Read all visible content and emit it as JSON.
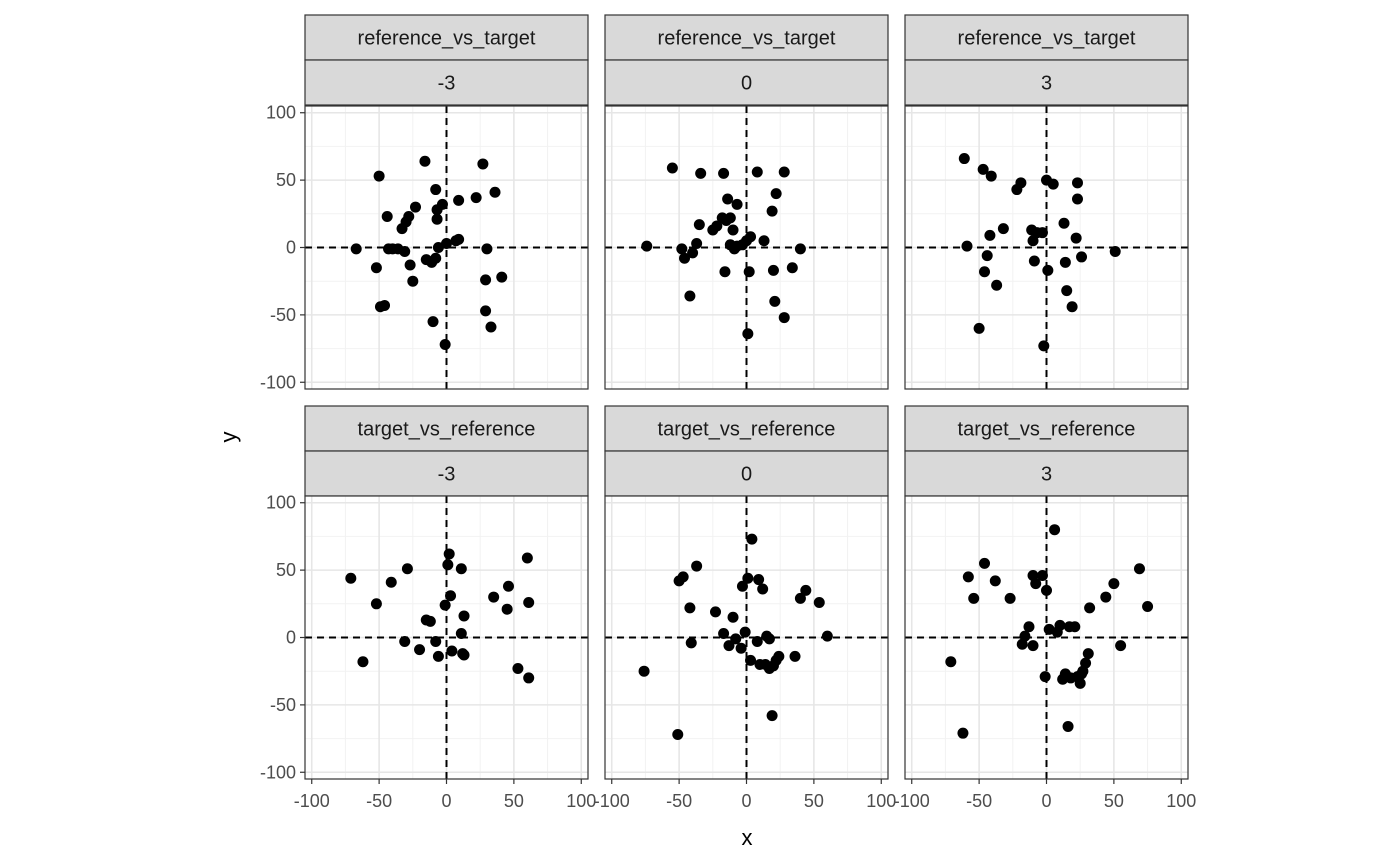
{
  "chart_data": {
    "type": "scatter",
    "xlabel": "x",
    "ylabel": "y",
    "xlim": [
      -105,
      105
    ],
    "ylim": [
      -105,
      105
    ],
    "x_ticks": [
      -100,
      -50,
      0,
      50,
      100
    ],
    "y_ticks": [
      -100,
      -50,
      0,
      50,
      100
    ],
    "x_tick_labels": [
      "-100",
      "-50",
      "0",
      "50",
      "100"
    ],
    "y_tick_labels": [
      "-100",
      "-50",
      "0",
      "50",
      "100"
    ],
    "reference_lines": {
      "x": 0,
      "y": 0,
      "style": "dashed"
    },
    "grid": true,
    "facet_layout": {
      "rows": 2,
      "cols": 3
    },
    "point_color": "#000000",
    "panels": [
      {
        "strip_top": "reference_vs_target",
        "strip_bottom": "-3",
        "points": [
          [
            -67,
            -1
          ],
          [
            -52,
            -15
          ],
          [
            -50,
            53
          ],
          [
            -49,
            -44
          ],
          [
            -46,
            -43
          ],
          [
            -44,
            23
          ],
          [
            -43,
            -1
          ],
          [
            -40,
            -1
          ],
          [
            -36,
            -1
          ],
          [
            -33,
            14
          ],
          [
            -31,
            -3
          ],
          [
            -30,
            19
          ],
          [
            -28,
            23
          ],
          [
            -27,
            -13
          ],
          [
            -25,
            -25
          ],
          [
            -23,
            30
          ],
          [
            -16,
            64
          ],
          [
            -15,
            -9
          ],
          [
            -11,
            -11
          ],
          [
            -10,
            -55
          ],
          [
            -8,
            43
          ],
          [
            -8,
            -8
          ],
          [
            -7,
            21
          ],
          [
            -7,
            28
          ],
          [
            -6,
            0
          ],
          [
            -3,
            32
          ],
          [
            -1,
            -72
          ],
          [
            0,
            3
          ],
          [
            7,
            5
          ],
          [
            9,
            6
          ],
          [
            9,
            35
          ],
          [
            22,
            37
          ],
          [
            27,
            62
          ],
          [
            29,
            -47
          ],
          [
            29,
            -24
          ],
          [
            30,
            -1
          ],
          [
            33,
            -59
          ],
          [
            36,
            41
          ],
          [
            41,
            -22
          ]
        ]
      },
      {
        "strip_top": "reference_vs_target",
        "strip_bottom": "0",
        "points": [
          [
            -74,
            1
          ],
          [
            -55,
            59
          ],
          [
            -48,
            -1
          ],
          [
            -46,
            -8
          ],
          [
            -42,
            -36
          ],
          [
            -40,
            -4
          ],
          [
            -37,
            3
          ],
          [
            -35,
            17
          ],
          [
            -34,
            55
          ],
          [
            -25,
            13
          ],
          [
            -22,
            16
          ],
          [
            -18,
            22
          ],
          [
            -17,
            55
          ],
          [
            -16,
            -18
          ],
          [
            -15,
            20
          ],
          [
            -14,
            36
          ],
          [
            -12,
            22
          ],
          [
            -12,
            2
          ],
          [
            -10,
            13
          ],
          [
            -9,
            -1
          ],
          [
            -7,
            1
          ],
          [
            -7,
            32
          ],
          [
            -3,
            2
          ],
          [
            0,
            5
          ],
          [
            1,
            -64
          ],
          [
            2,
            -18
          ],
          [
            3,
            8
          ],
          [
            8,
            56
          ],
          [
            13,
            5
          ],
          [
            19,
            27
          ],
          [
            20,
            -17
          ],
          [
            21,
            -40
          ],
          [
            22,
            40
          ],
          [
            28,
            56
          ],
          [
            28,
            -52
          ],
          [
            34,
            -15
          ],
          [
            40,
            -1
          ]
        ]
      },
      {
        "strip_top": "reference_vs_target",
        "strip_bottom": "3",
        "points": [
          [
            -61,
            66
          ],
          [
            -59,
            1
          ],
          [
            -50,
            -60
          ],
          [
            -47,
            58
          ],
          [
            -46,
            -18
          ],
          [
            -44,
            -6
          ],
          [
            -42,
            9
          ],
          [
            -41,
            53
          ],
          [
            -37,
            -28
          ],
          [
            -32,
            14
          ],
          [
            -22,
            43
          ],
          [
            -19,
            48
          ],
          [
            -11,
            13
          ],
          [
            -10,
            5
          ],
          [
            -9,
            -10
          ],
          [
            -7,
            11
          ],
          [
            -3,
            11
          ],
          [
            -2,
            -73
          ],
          [
            0,
            50
          ],
          [
            1,
            -17
          ],
          [
            5,
            47
          ],
          [
            13,
            18
          ],
          [
            14,
            -11
          ],
          [
            15,
            -32
          ],
          [
            19,
            -44
          ],
          [
            22,
            7
          ],
          [
            23,
            48
          ],
          [
            23,
            36
          ],
          [
            26,
            -7
          ],
          [
            51,
            -3
          ]
        ]
      },
      {
        "strip_top": "target_vs_reference",
        "strip_bottom": "-3",
        "points": [
          [
            -71,
            44
          ],
          [
            -62,
            -18
          ],
          [
            -52,
            25
          ],
          [
            -41,
            41
          ],
          [
            -31,
            -3
          ],
          [
            -29,
            51
          ],
          [
            -20,
            -9
          ],
          [
            -15,
            13
          ],
          [
            -12,
            12
          ],
          [
            -8,
            -3
          ],
          [
            -6,
            -14
          ],
          [
            -1,
            24
          ],
          [
            1,
            54
          ],
          [
            2,
            62
          ],
          [
            3,
            31
          ],
          [
            4,
            -10
          ],
          [
            11,
            51
          ],
          [
            11,
            3
          ],
          [
            12,
            -12
          ],
          [
            13,
            16
          ],
          [
            13,
            -13
          ],
          [
            35,
            30
          ],
          [
            45,
            21
          ],
          [
            46,
            38
          ],
          [
            53,
            -23
          ],
          [
            60,
            59
          ],
          [
            61,
            26
          ],
          [
            61,
            -30
          ]
        ]
      },
      {
        "strip_top": "target_vs_reference",
        "strip_bottom": "0",
        "points": [
          [
            -76,
            -25
          ],
          [
            -51,
            -72
          ],
          [
            -50,
            42
          ],
          [
            -47,
            45
          ],
          [
            -42,
            22
          ],
          [
            -41,
            -4
          ],
          [
            -37,
            53
          ],
          [
            -23,
            19
          ],
          [
            -17,
            3
          ],
          [
            -13,
            -6
          ],
          [
            -10,
            15
          ],
          [
            -8,
            -1
          ],
          [
            -4,
            -8
          ],
          [
            -3,
            38
          ],
          [
            -1,
            4
          ],
          [
            1,
            44
          ],
          [
            3,
            -17
          ],
          [
            4,
            73
          ],
          [
            8,
            -3
          ],
          [
            9,
            43
          ],
          [
            10,
            -20
          ],
          [
            12,
            36
          ],
          [
            14,
            -20
          ],
          [
            15,
            1
          ],
          [
            17,
            -23
          ],
          [
            17,
            -1
          ],
          [
            19,
            -58
          ],
          [
            20,
            -21
          ],
          [
            22,
            -17
          ],
          [
            24,
            -14
          ],
          [
            36,
            -14
          ],
          [
            40,
            29
          ],
          [
            44,
            35
          ],
          [
            54,
            26
          ],
          [
            60,
            1
          ]
        ]
      },
      {
        "strip_top": "target_vs_reference",
        "strip_bottom": "3",
        "points": [
          [
            -71,
            -18
          ],
          [
            -62,
            -71
          ],
          [
            -58,
            45
          ],
          [
            -54,
            29
          ],
          [
            -46,
            55
          ],
          [
            -38,
            42
          ],
          [
            -27,
            29
          ],
          [
            -18,
            -5
          ],
          [
            -16,
            1
          ],
          [
            -13,
            8
          ],
          [
            -10,
            -6
          ],
          [
            -10,
            46
          ],
          [
            -8,
            40
          ],
          [
            -3,
            46
          ],
          [
            0,
            35
          ],
          [
            -1,
            -29
          ],
          [
            2,
            6
          ],
          [
            6,
            80
          ],
          [
            8,
            4
          ],
          [
            10,
            9
          ],
          [
            12,
            -31
          ],
          [
            14,
            -27
          ],
          [
            16,
            -66
          ],
          [
            17,
            8
          ],
          [
            18,
            -30
          ],
          [
            21,
            8
          ],
          [
            23,
            -29
          ],
          [
            25,
            -34
          ],
          [
            26,
            -27
          ],
          [
            27,
            -25
          ],
          [
            29,
            -19
          ],
          [
            31,
            -12
          ],
          [
            32,
            22
          ],
          [
            44,
            30
          ],
          [
            50,
            40
          ],
          [
            55,
            -6
          ],
          [
            69,
            51
          ],
          [
            75,
            23
          ]
        ]
      }
    ]
  }
}
